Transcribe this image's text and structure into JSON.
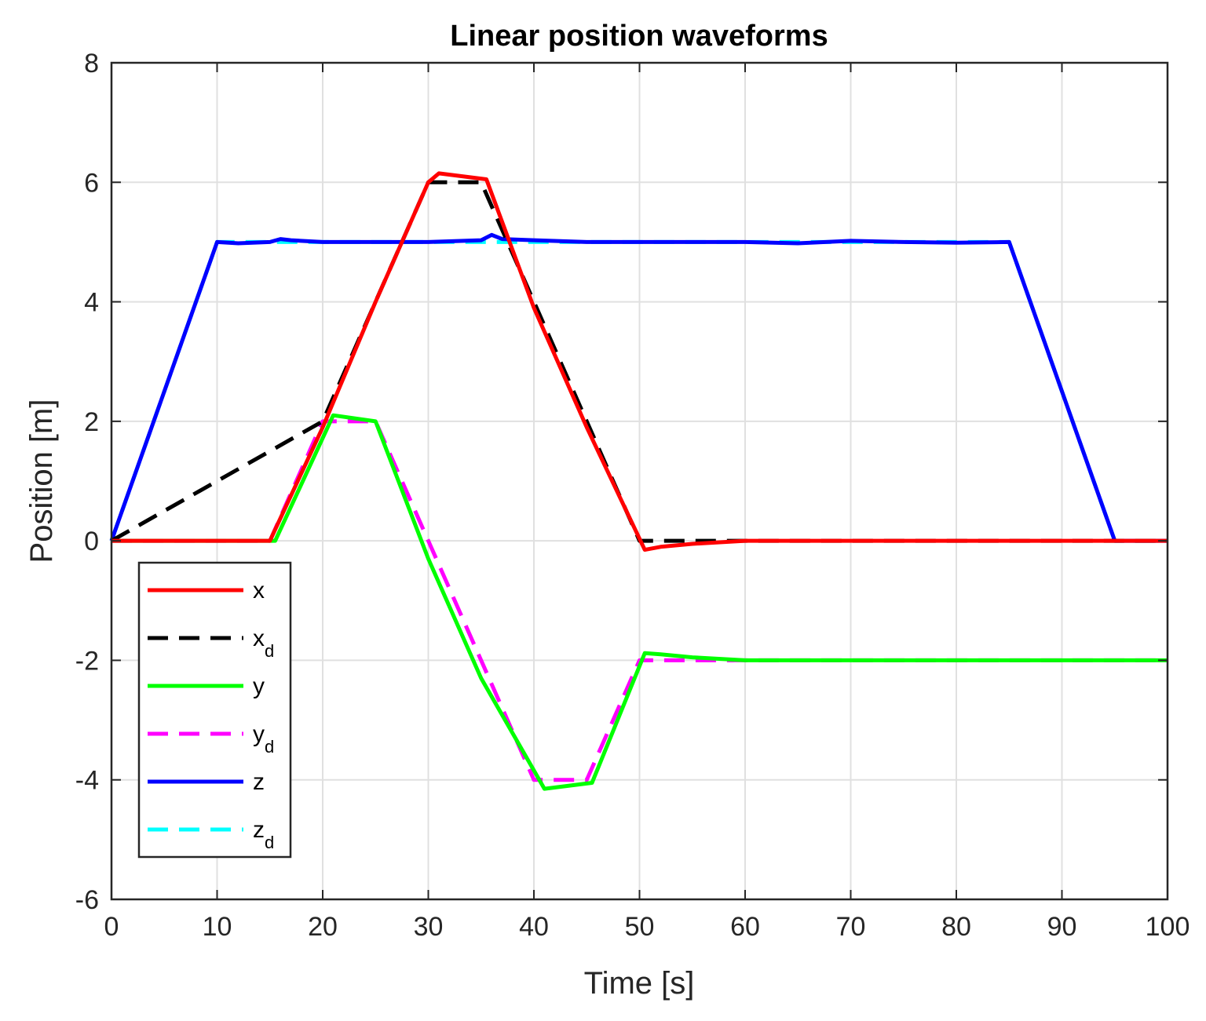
{
  "chart_data": {
    "type": "line",
    "title": "Linear position waveforms",
    "xlabel": "Time [s]",
    "ylabel": "Position [m]",
    "xlim": [
      0,
      100
    ],
    "ylim": [
      -6,
      8
    ],
    "xticks": [
      0,
      10,
      20,
      30,
      40,
      50,
      60,
      70,
      80,
      90,
      100
    ],
    "yticks": [
      -6,
      -4,
      -2,
      0,
      2,
      4,
      6,
      8
    ],
    "xtick_labels": [
      "0",
      "10",
      "20",
      "30",
      "40",
      "50",
      "60",
      "70",
      "80",
      "90",
      "100"
    ],
    "ytick_labels": [
      "-6",
      "-4",
      "-2",
      "0",
      "2",
      "4",
      "6",
      "8"
    ],
    "grid": true,
    "legend_position": "bottom-left",
    "series": [
      {
        "name": "x",
        "label_main": "x",
        "label_sub": "",
        "color": "#ff0000",
        "style": "solid",
        "x": [
          0,
          15,
          20,
          25,
          30,
          31,
          35.5,
          40,
          45,
          50.5,
          52,
          55,
          60,
          100
        ],
        "y": [
          0,
          0,
          1.9,
          4.0,
          6.0,
          6.15,
          6.05,
          3.9,
          1.9,
          -0.15,
          -0.1,
          -0.05,
          0,
          0
        ]
      },
      {
        "name": "x_d",
        "label_main": "x",
        "label_sub": "d",
        "color": "#000000",
        "style": "dashed",
        "x": [
          0,
          20,
          30,
          35,
          50,
          100
        ],
        "y": [
          0,
          2,
          6,
          6,
          0,
          0
        ]
      },
      {
        "name": "y",
        "label_main": "y",
        "label_sub": "",
        "color": "#00ff00",
        "style": "solid",
        "x": [
          0,
          15.5,
          21,
          25,
          30,
          35,
          41,
          45.5,
          50.5,
          52,
          55,
          60,
          100
        ],
        "y": [
          0,
          0,
          2.1,
          2.0,
          -0.3,
          -2.3,
          -4.15,
          -4.05,
          -1.88,
          -1.9,
          -1.95,
          -2.0,
          -2.0
        ]
      },
      {
        "name": "y_d",
        "label_main": "y",
        "label_sub": "d",
        "color": "#ff00ff",
        "style": "dashed",
        "x": [
          0,
          15,
          20,
          25,
          40,
          45,
          50,
          100
        ],
        "y": [
          0,
          0,
          2,
          2,
          -4,
          -4,
          -2,
          -2
        ]
      },
      {
        "name": "z",
        "label_main": "z",
        "label_sub": "",
        "color": "#0000ff",
        "style": "solid",
        "x": [
          0,
          10,
          12,
          15,
          16,
          17,
          20,
          25,
          30,
          35,
          36,
          37,
          40,
          45,
          50,
          55,
          60,
          65,
          70,
          75,
          80,
          85,
          95,
          100
        ],
        "y": [
          0,
          5.0,
          4.98,
          5.0,
          5.05,
          5.03,
          5.0,
          5.0,
          5.0,
          5.03,
          5.12,
          5.05,
          5.03,
          5.0,
          5.0,
          5.0,
          5.0,
          4.98,
          5.02,
          5.0,
          4.99,
          5.0,
          0,
          0
        ]
      },
      {
        "name": "z_d",
        "label_main": "z",
        "label_sub": "d",
        "color": "#00ffff",
        "style": "dashed",
        "x": [
          0,
          10,
          85,
          95,
          100
        ],
        "y": [
          0,
          5,
          5,
          0,
          0
        ]
      }
    ]
  }
}
